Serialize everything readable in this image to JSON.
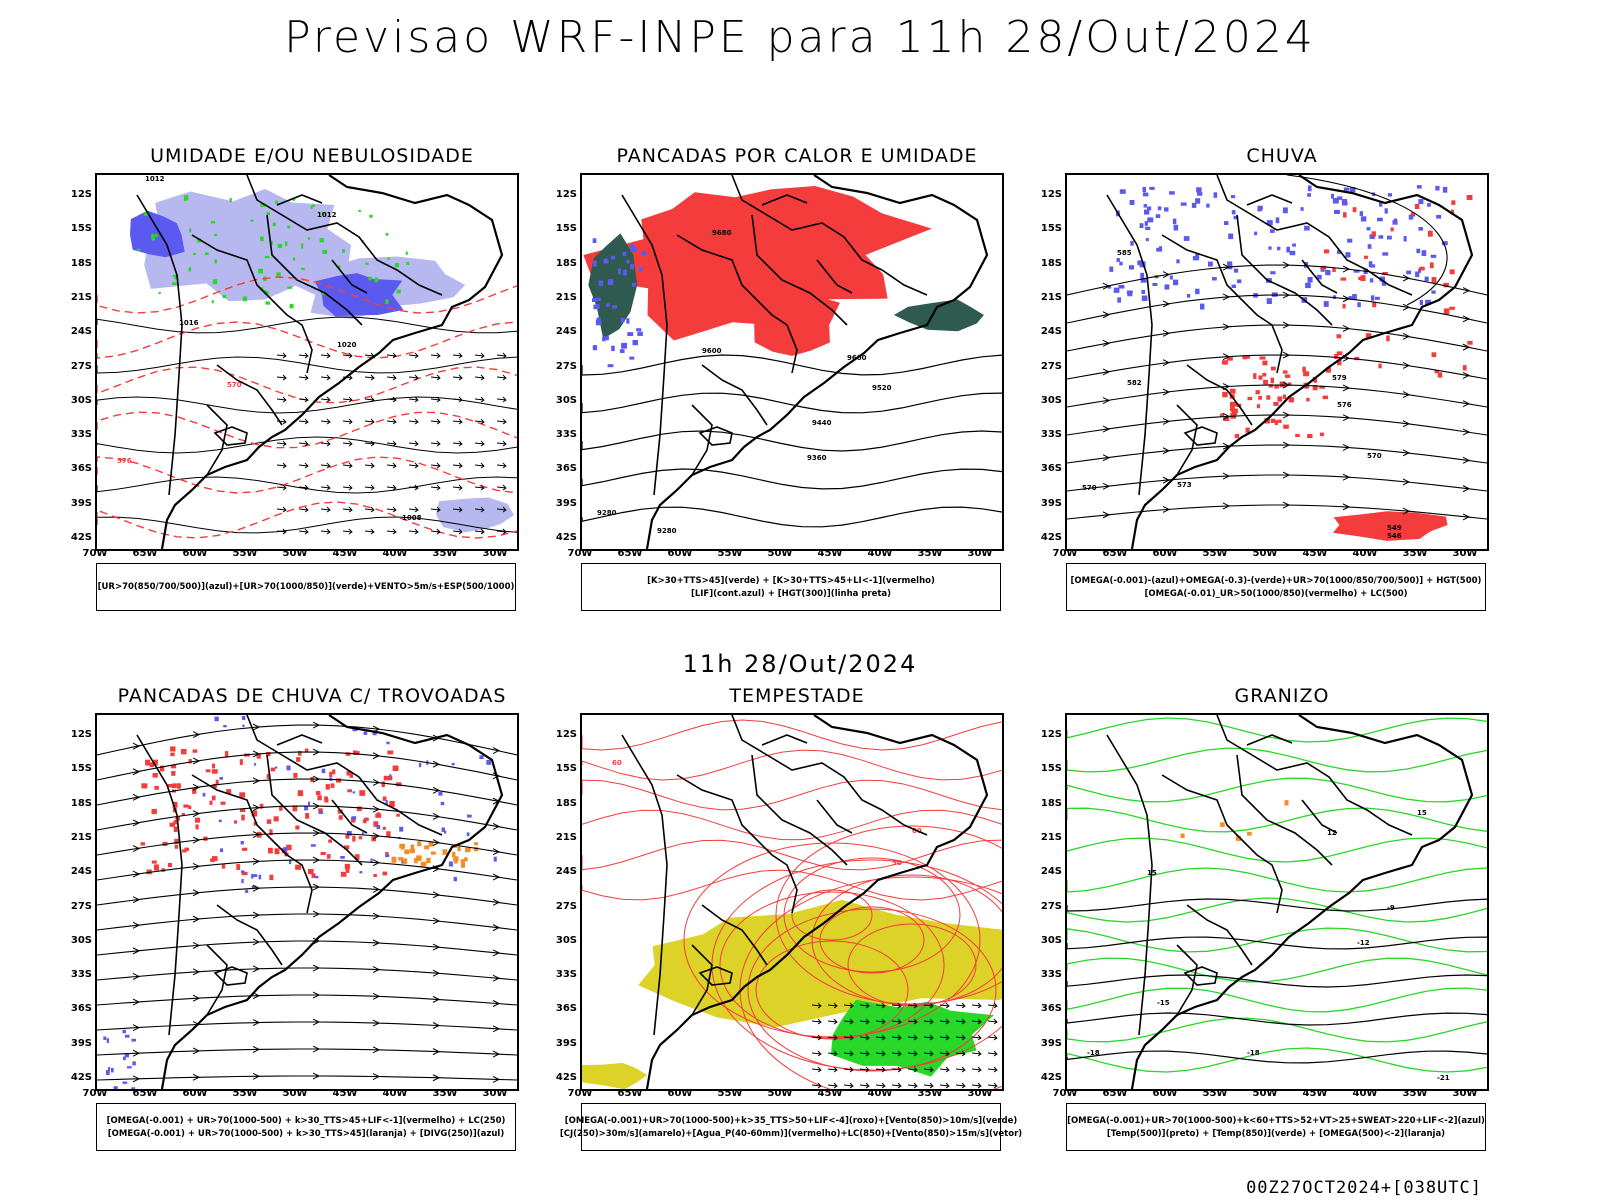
{
  "title": "Previsao WRF-INPE  para 11h 28/Out/2024",
  "subtitle": "11h 28/Out/2024",
  "footer": "00Z27OCT2024+[038UTC]",
  "axes": {
    "lat_labels": [
      "12S",
      "15S",
      "18S",
      "21S",
      "24S",
      "27S",
      "30S",
      "33S",
      "36S",
      "39S",
      "42S"
    ],
    "lon_labels": [
      "70W",
      "65W",
      "60W",
      "55W",
      "50W",
      "45W",
      "40W",
      "35W",
      "30W"
    ]
  },
  "colors": {
    "lightblue": "#b8b8f0",
    "blue": "#5a5af0",
    "green": "#28d728",
    "red": "#f53c3c",
    "darkgreen": "#2f5a50",
    "yellow": "#dcd228",
    "orange": "#f58c28"
  },
  "panels": [
    {
      "title": "UMIDADE E/OU NEBULOSIDADE",
      "legend": [
        "[UR>70(850/700/500)](azul)+[UR>70(1000/850)](verde)+VENTO>5m/s+ESP(500/1000)"
      ],
      "contour_labels": [
        "1012",
        "1016",
        "1020",
        "576",
        "570",
        "564",
        "558",
        "552",
        "1008"
      ]
    },
    {
      "title": "PANCADAS POR CALOR E UMIDADE",
      "legend": [
        "[K>30+TTS>45](verde) + [K>30+TTS>45+LI<-1](vermelho)",
        "[LIF](cont.azul) + [HGT(300)](linha preta)"
      ],
      "contour_labels": [
        "9680",
        "9600",
        "9520",
        "9440",
        "9360",
        "9280"
      ]
    },
    {
      "title": "CHUVA",
      "legend": [
        "[OMEGA(-0.001)-(azul)+OMEGA(-0.3)-(verde)+UR>70(1000/850/700/500)] + HGT(500)",
        "[OMEGA(-0.01)_UR>50(1000/850)(vermelho) + LC(500)"
      ],
      "contour_labels": [
        "585",
        "582",
        "579",
        "576",
        "573",
        "570",
        "549",
        "546"
      ]
    },
    {
      "title": "PANCADAS DE CHUVA C/ TROVOADAS",
      "legend": [
        "[OMEGA(-0.001) + UR>70(1000-500) + k>30_TTS>45+LIF<-1](vermelho) + LC(250)",
        "[OMEGA(-0.001) + UR>70(1000-500) + k>30_TTS>45](laranja) + [DIVG(250)](azul)"
      ],
      "contour_labels": []
    },
    {
      "title": "TEMPESTADE",
      "legend": [
        "[OMEGA(-0.001)+UR>70(1000-500)+k>35_TTS>50+LIF<-4](roxo)+[Vento(850)>10m/s](verde)",
        "[CJ(250)>30m/s](amarelo)+[Agua_P(40-60mm)](vermelho)+LC(850)+[Vento(850)>15m/s](vetor)"
      ],
      "contour_labels": [
        "60",
        "50"
      ]
    },
    {
      "title": "GRANIZO",
      "legend": [
        "[OMEGA(-0.001)+UR>70(1000-500)+k<60+TTS>52+VT>25+SWEAT>220+LIF<-2](azul)",
        "[Temp(500)](preto) + [Temp(850)](verde) + [OMEGA(500)<-2](laranja)"
      ],
      "contour_labels": [
        "-9",
        "-12",
        "-15",
        "-18",
        "-21",
        "15",
        "12",
        "9"
      ]
    }
  ]
}
